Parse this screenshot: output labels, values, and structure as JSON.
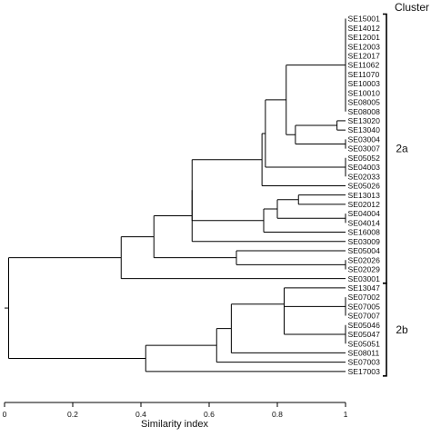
{
  "chart_data": {
    "type": "dendrogram",
    "xlabel": "Similarity index",
    "xlim": [
      0,
      1
    ],
    "xticks": [
      0,
      0.2,
      0.4,
      0.6,
      0.8,
      1
    ],
    "tick_labels": [
      "0",
      "0.2",
      "0.4",
      "0.6",
      "0.8",
      "1"
    ],
    "cluster_title": "Cluster",
    "leaves": [
      "SE15001",
      "SE14012",
      "SE12001",
      "SE12003",
      "SE12017",
      "SE11062",
      "SE11070",
      "SE10003",
      "SE10010",
      "SE08005",
      "SE08008",
      "SE13020",
      "SE13040",
      "SE03004",
      "SE03007",
      "SE05052",
      "SE04003",
      "SE02033",
      "SE05026",
      "SE13013",
      "SE02012",
      "SE04004",
      "SE04014",
      "SE16008",
      "SE03009",
      "SE05004",
      "SE02026",
      "SE02029",
      "SE03001",
      "SE13047",
      "SE07002",
      "SE07005",
      "SE07007",
      "SE05046",
      "SE05047",
      "SE05051",
      "SE08011",
      "SE07003",
      "SE17003"
    ],
    "clusters": [
      {
        "label": "2a",
        "first_leaf": 0,
        "last_leaf": 28
      },
      {
        "label": "2b",
        "first_leaf": 29,
        "last_leaf": 38
      }
    ],
    "merges": [
      {
        "id": "g0",
        "similarity": 1.0,
        "children": [
          "L0",
          "L1",
          "L2",
          "L3",
          "L4",
          "L5",
          "L6",
          "L7",
          "L8",
          "L9",
          "L10"
        ]
      },
      {
        "id": "g1",
        "similarity": 0.975,
        "children": [
          "L11",
          "L12"
        ]
      },
      {
        "id": "g2",
        "similarity": 1.0,
        "children": [
          "L13",
          "L14"
        ]
      },
      {
        "id": "g3",
        "similarity": 0.853,
        "children": [
          "g1",
          "g2"
        ]
      },
      {
        "id": "g4",
        "similarity": 0.826,
        "children": [
          "g0",
          "g3"
        ]
      },
      {
        "id": "g5",
        "similarity": 1.0,
        "children": [
          "L15",
          "L16",
          "L17"
        ]
      },
      {
        "id": "g6",
        "similarity": 0.765,
        "children": [
          "g4",
          "g5"
        ]
      },
      {
        "id": "g7",
        "similarity": 0.755,
        "children": [
          "g6",
          "L18"
        ]
      },
      {
        "id": "g8",
        "similarity": 0.862,
        "children": [
          "L19",
          "L20"
        ]
      },
      {
        "id": "g9",
        "similarity": 1.0,
        "children": [
          "L21",
          "L22"
        ]
      },
      {
        "id": "g10",
        "similarity": 0.8,
        "children": [
          "g8",
          "g9"
        ]
      },
      {
        "id": "g11",
        "similarity": 0.76,
        "children": [
          "g10",
          "L23"
        ]
      },
      {
        "id": "g12",
        "similarity": 0.55,
        "children": [
          "g7",
          "g11"
        ]
      },
      {
        "id": "g13",
        "similarity": 0.55,
        "children": [
          "g12",
          "L24"
        ]
      },
      {
        "id": "g14",
        "similarity": 1.0,
        "children": [
          "L26",
          "L27"
        ]
      },
      {
        "id": "g15",
        "similarity": 0.68,
        "children": [
          "L25",
          "g14"
        ]
      },
      {
        "id": "g16",
        "similarity": 0.438,
        "children": [
          "g13",
          "g15"
        ]
      },
      {
        "id": "g17",
        "similarity": 0.342,
        "children": [
          "g16",
          "L28"
        ]
      },
      {
        "id": "g18",
        "similarity": 1.0,
        "children": [
          "L30",
          "L31",
          "L32"
        ]
      },
      {
        "id": "g19",
        "similarity": 1.0,
        "children": [
          "L33",
          "L34",
          "L35"
        ]
      },
      {
        "id": "g20",
        "similarity": 0.82,
        "children": [
          "g18",
          "g19"
        ]
      },
      {
        "id": "g21",
        "similarity": 0.82,
        "children": [
          "L29",
          "g20"
        ]
      },
      {
        "id": "g22",
        "similarity": 0.665,
        "children": [
          "g21",
          "L36"
        ]
      },
      {
        "id": "g23",
        "similarity": 0.622,
        "children": [
          "g22",
          "L37"
        ]
      },
      {
        "id": "g24",
        "similarity": 0.414,
        "children": [
          "g23",
          "L38"
        ]
      },
      {
        "id": "g25",
        "similarity": 0.012,
        "children": [
          "g17",
          "g24"
        ]
      }
    ]
  }
}
